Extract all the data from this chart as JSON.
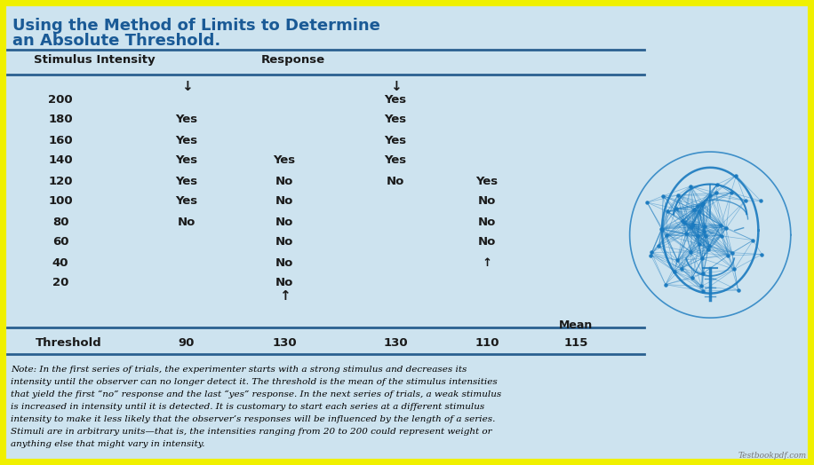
{
  "title_line1": "Using the Method of Limits to Determine",
  "title_line2": "an Absolute Threshold.",
  "title_color": "#1a5a96",
  "bg_color": "#cde3ef",
  "outer_bg": "#f0f000",
  "intensities": [
    "200",
    "180",
    "160",
    "140",
    "120",
    "100",
    "80",
    "60",
    "40",
    "20"
  ],
  "c1_vals": [
    "",
    "Yes",
    "Yes",
    "Yes",
    "Yes",
    "Yes",
    "No",
    "",
    "",
    ""
  ],
  "c2_vals": [
    "",
    "",
    "",
    "Yes",
    "No",
    "No",
    "No",
    "No",
    "No",
    "No"
  ],
  "c3_vals": [
    "Yes",
    "Yes",
    "Yes",
    "Yes",
    "No",
    "",
    "",
    "",
    "",
    ""
  ],
  "c4_vals": [
    "",
    "",
    "",
    "",
    "Yes",
    "No",
    "No",
    "No",
    "↑",
    ""
  ],
  "threshold_values": [
    "90",
    "130",
    "130",
    "110"
  ],
  "mean_value": "115",
  "note_text": "Note: In the first series of trials, the experimenter starts with a strong stimulus and decreases its intensity until the observer can no longer detect it. The threshold is the mean of the stimulus intensities that yield the first “no” response and the last “yes” response. In the next series of trials, a weak stimulus is increased in intensity until it is detected. It is customary to start each series at a different stimulus intensity to make it less likely that the observer’s responses will be influenced by the length of a series. Stimuli are in arbitrary units—that is, the intensities ranging from 20 to 200 could represent weight or anything else that might vary in intensity.",
  "watermark": "Testbookpdf.com",
  "line_color": "#2a6090",
  "text_color": "#1a1a1a",
  "brain_color": "#1a7abf"
}
